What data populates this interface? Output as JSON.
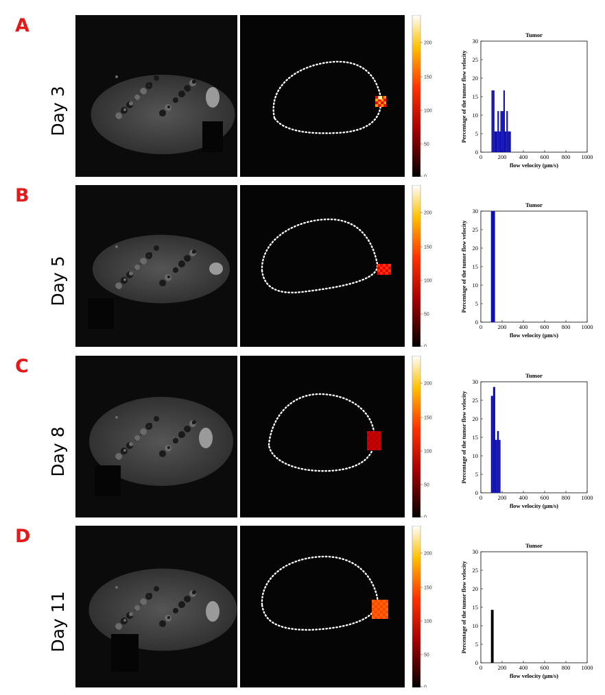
{
  "colorbar_ticks": [
    "200",
    "150",
    "100",
    "50",
    "0"
  ],
  "panels": [
    {
      "letter": "A",
      "day": "Day 3",
      "chart": {
        "type": "bar",
        "title": "Tumor",
        "xlabel": "flow velocity (μm/s)",
        "ylabel": "Percentage of the tumor flow velocity",
        "xlim": [
          0,
          1000
        ],
        "ylim": [
          0,
          30
        ],
        "xticks": [
          "0",
          "200",
          "400",
          "600",
          "800",
          "1000"
        ],
        "yticks": [
          "0",
          "5",
          "10",
          "15",
          "20",
          "25",
          "30"
        ],
        "bar_color": "#1010b0",
        "bars": [
          {
            "x": 100,
            "w": 14,
            "y": 16.7
          },
          {
            "x": 114,
            "w": 14,
            "y": 16.7
          },
          {
            "x": 128,
            "w": 14,
            "y": 5.6
          },
          {
            "x": 142,
            "w": 14,
            "y": 5.6
          },
          {
            "x": 156,
            "w": 14,
            "y": 11.1
          },
          {
            "x": 170,
            "w": 14,
            "y": 5.6
          },
          {
            "x": 184,
            "w": 14,
            "y": 11.1
          },
          {
            "x": 198,
            "w": 14,
            "y": 11.1
          },
          {
            "x": 212,
            "w": 14,
            "y": 16.7
          },
          {
            "x": 226,
            "w": 14,
            "y": 5.6
          },
          {
            "x": 240,
            "w": 14,
            "y": 11.1
          },
          {
            "x": 254,
            "w": 14,
            "y": 5.6
          },
          {
            "x": 268,
            "w": 14,
            "y": 5.6
          }
        ]
      }
    },
    {
      "letter": "B",
      "day": "Day 5",
      "chart": {
        "type": "bar",
        "title": "Tumor",
        "xlabel": "flow velocity (μm/s)",
        "ylabel": "Percentage of the tumor flow velocity",
        "xlim": [
          0,
          1000
        ],
        "ylim": [
          0,
          30
        ],
        "xticks": [
          "0",
          "200",
          "400",
          "600",
          "800",
          "1000"
        ],
        "yticks": [
          "0",
          "5",
          "10",
          "15",
          "20",
          "25",
          "30"
        ],
        "bar_color": "#1010b0",
        "bars": [
          {
            "x": 95,
            "w": 38,
            "y": 30
          }
        ]
      }
    },
    {
      "letter": "C",
      "day": "Day 8",
      "chart": {
        "type": "bar",
        "title": "Tumor",
        "xlabel": "flow velocity (μm/s)",
        "ylabel": "Percentage of the tumor flow velocity",
        "xlim": [
          0,
          1000
        ],
        "ylim": [
          0,
          30
        ],
        "xticks": [
          "0",
          "200",
          "400",
          "600",
          "800",
          "1000"
        ],
        "yticks": [
          "0",
          "5",
          "10",
          "15",
          "20",
          "25",
          "30"
        ],
        "bar_color": "#1010b0",
        "bars": [
          {
            "x": 95,
            "w": 20,
            "y": 26.2
          },
          {
            "x": 115,
            "w": 20,
            "y": 28.6
          },
          {
            "x": 135,
            "w": 18,
            "y": 14.3
          },
          {
            "x": 153,
            "w": 16,
            "y": 16.7
          },
          {
            "x": 169,
            "w": 16,
            "y": 14.3
          }
        ]
      }
    },
    {
      "letter": "D",
      "day": "Day 11",
      "chart": {
        "type": "bar",
        "title": "Tumor",
        "xlabel": "flow velocity (μm/s)",
        "ylabel": "Percentage of the tumor flow velocity",
        "xlim": [
          0,
          1000
        ],
        "ylim": [
          0,
          30
        ],
        "xticks": [
          "0",
          "200",
          "400",
          "600",
          "800",
          "1000"
        ],
        "yticks": [
          "0",
          "5",
          "10",
          "15",
          "20",
          "25",
          "30"
        ],
        "bar_color": "#000000",
        "bars": [
          {
            "x": 95,
            "w": 25,
            "y": 14.3
          }
        ]
      }
    }
  ]
}
